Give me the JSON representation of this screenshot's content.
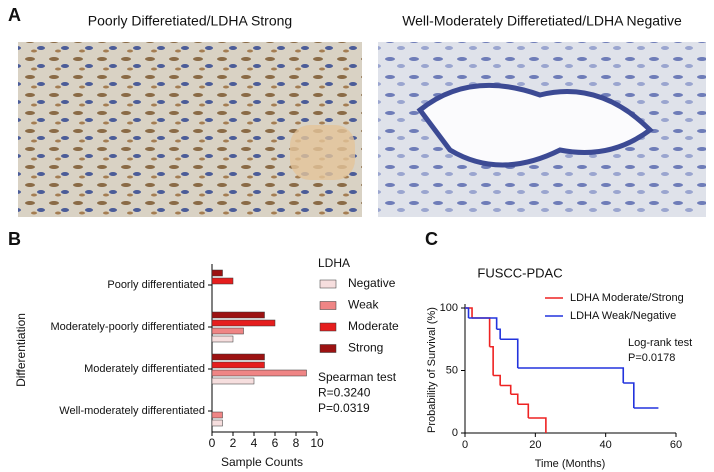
{
  "panel_labels": [
    "A",
    "B",
    "C"
  ],
  "images": [
    {
      "caption": "Poorly Differetiated/LDHA Strong"
    },
    {
      "caption": "Well-Moderately Differetiated/LDHA Negative"
    }
  ],
  "chart_data": [
    {
      "type": "bar",
      "orientation": "horizontal",
      "categories": [
        "Poorly differentiated",
        "Moderately-poorly differentiated",
        "Moderately differentiated",
        "Well-moderately differentiated"
      ],
      "series": [
        {
          "name": "Negative",
          "color": "#f6dede",
          "values": [
            0,
            2,
            4,
            1
          ]
        },
        {
          "name": "Weak",
          "color": "#ef8585",
          "values": [
            0,
            3,
            9,
            1
          ]
        },
        {
          "name": "Moderate",
          "color": "#e51e1e",
          "values": [
            2,
            6,
            5,
            0
          ]
        },
        {
          "name": "Strong",
          "color": "#9c1212",
          "values": [
            1,
            5,
            5,
            0
          ]
        }
      ],
      "legend_title": "LDHA",
      "xlabel": "Sample Counts",
      "ylabel": "Differentiation",
      "xlim": [
        0,
        10
      ],
      "xticks": [
        0,
        2,
        4,
        6,
        8,
        10
      ],
      "annotations": [
        "Spearman test",
        "R=0.3240",
        "P=0.0319"
      ]
    },
    {
      "type": "line",
      "step": true,
      "title": "FUSCC-PDAC",
      "xlabel": "Time (Months)",
      "ylabel": "Probability of Survival (%)",
      "xlim": [
        0,
        60
      ],
      "xticks": [
        0,
        20,
        40,
        60
      ],
      "ylim": [
        0,
        100
      ],
      "yticks": [
        0,
        50,
        100
      ],
      "series": [
        {
          "name": "LDHA Moderate/Strong",
          "color": "#ee2222",
          "x": [
            0,
            2,
            7,
            8,
            10,
            13,
            15,
            18,
            23
          ],
          "values": [
            100,
            92,
            69,
            46,
            38,
            31,
            23,
            12,
            0
          ]
        },
        {
          "name": "LDHA Weak/Negative",
          "color": "#2233dd",
          "x": [
            0,
            1,
            9,
            10,
            15,
            45,
            48,
            55
          ],
          "values": [
            100,
            92,
            83,
            75,
            52,
            40,
            20,
            20
          ]
        }
      ],
      "annotations": [
        "Log-rank test",
        "P=0.0178"
      ]
    }
  ]
}
